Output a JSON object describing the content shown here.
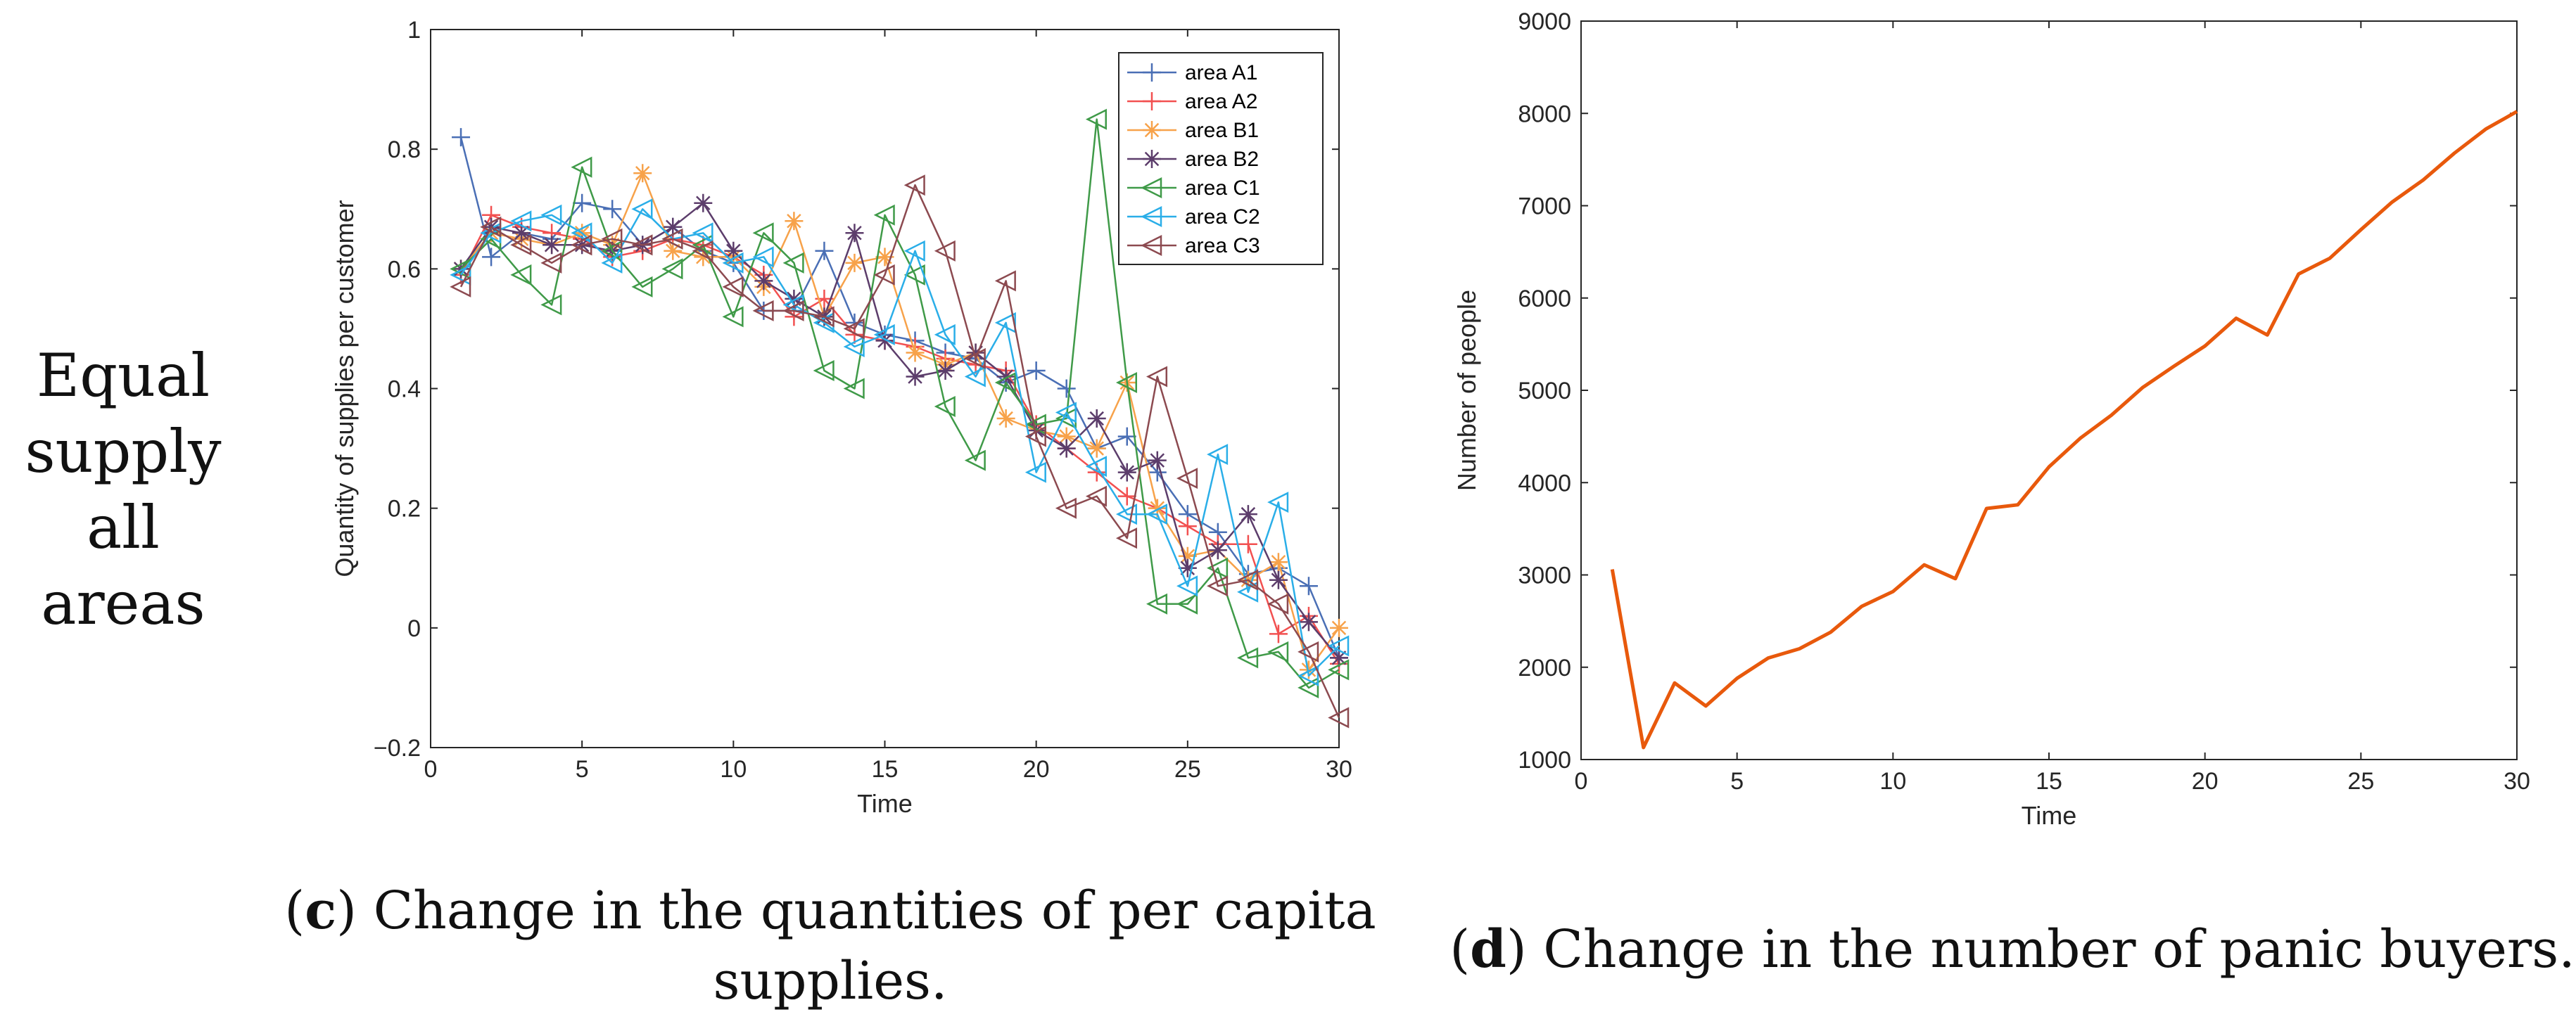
{
  "row_label": [
    "Equal",
    "supply",
    "all areas"
  ],
  "captions": {
    "c": {
      "letter": "c",
      "text_line1": ") Change in the quantities of per capita",
      "text_line2": "supplies."
    },
    "d": {
      "letter": "d",
      "text": ") Change in the number of panic buyers."
    }
  },
  "chart_data": [
    {
      "type": "line",
      "title": "",
      "xlabel": "Time",
      "ylabel": "Quantity of supplies per customer",
      "xlim": [
        0,
        30
      ],
      "ylim": [
        -0.2,
        1
      ],
      "xticks": [
        0,
        5,
        10,
        15,
        20,
        25,
        30
      ],
      "yticks": [
        -0.2,
        0,
        0.2,
        0.4,
        0.6,
        0.8,
        1
      ],
      "ytick_labels": [
        "−0.2",
        "0",
        "0.2",
        "0.4",
        "0.6",
        "0.8",
        "1"
      ],
      "grid": false,
      "legend_position": "top-right",
      "x": [
        1,
        2,
        3,
        4,
        5,
        6,
        7,
        8,
        9,
        10,
        11,
        12,
        13,
        14,
        15,
        16,
        17,
        18,
        19,
        20,
        21,
        22,
        23,
        24,
        25,
        26,
        27,
        28,
        29,
        30
      ],
      "series": [
        {
          "name": "area A1",
          "color": "#4a6fb5",
          "marker": "plus",
          "values": [
            0.82,
            0.62,
            0.66,
            0.65,
            0.71,
            0.7,
            0.64,
            0.67,
            0.63,
            0.61,
            0.53,
            0.53,
            0.63,
            0.51,
            0.49,
            0.48,
            0.46,
            0.45,
            0.41,
            0.43,
            0.4,
            0.3,
            0.32,
            0.26,
            0.19,
            0.16,
            0.09,
            0.1,
            0.07,
            -0.05
          ]
        },
        {
          "name": "area A2",
          "color": "#f25050",
          "marker": "plus",
          "values": [
            0.59,
            0.69,
            0.67,
            0.66,
            0.65,
            0.62,
            0.63,
            0.65,
            0.64,
            0.62,
            0.59,
            0.52,
            0.55,
            0.49,
            0.48,
            0.47,
            0.45,
            0.44,
            0.43,
            0.34,
            0.3,
            0.26,
            0.22,
            0.2,
            0.17,
            0.14,
            0.14,
            -0.01,
            0.02,
            -0.06
          ]
        },
        {
          "name": "area B1",
          "color": "#f7a24a",
          "marker": "asterisk",
          "values": [
            0.6,
            0.66,
            0.65,
            0.64,
            0.66,
            0.64,
            0.76,
            0.63,
            0.62,
            0.62,
            0.57,
            0.68,
            0.52,
            0.61,
            0.62,
            0.46,
            0.44,
            0.46,
            0.35,
            0.33,
            0.32,
            0.3,
            0.41,
            0.2,
            0.12,
            0.13,
            0.08,
            0.11,
            -0.07,
            0.0
          ]
        },
        {
          "name": "area B2",
          "color": "#5c3d6b",
          "marker": "asterisk",
          "values": [
            0.6,
            0.67,
            0.66,
            0.64,
            0.64,
            0.63,
            0.64,
            0.67,
            0.71,
            0.63,
            0.58,
            0.55,
            0.52,
            0.66,
            0.48,
            0.42,
            0.43,
            0.46,
            0.42,
            0.33,
            0.3,
            0.35,
            0.26,
            0.28,
            0.1,
            0.13,
            0.19,
            0.08,
            0.01,
            -0.05
          ]
        },
        {
          "name": "area C1",
          "color": "#3f9a48",
          "marker": "triangle-left",
          "values": [
            0.6,
            0.65,
            0.59,
            0.54,
            0.77,
            0.63,
            0.57,
            0.6,
            0.64,
            0.52,
            0.66,
            0.61,
            0.43,
            0.4,
            0.69,
            0.59,
            0.37,
            0.28,
            0.41,
            0.34,
            0.35,
            0.85,
            0.41,
            0.04,
            0.04,
            0.1,
            -0.05,
            -0.04,
            -0.1,
            -0.07
          ]
        },
        {
          "name": "area C2",
          "color": "#2aaee8",
          "marker": "triangle-left",
          "values": [
            0.59,
            0.66,
            0.68,
            0.69,
            0.66,
            0.61,
            0.7,
            0.65,
            0.66,
            0.61,
            0.62,
            0.54,
            0.51,
            0.47,
            0.49,
            0.63,
            0.49,
            0.42,
            0.51,
            0.26,
            0.36,
            0.27,
            0.19,
            0.19,
            0.07,
            0.29,
            0.06,
            0.21,
            -0.08,
            -0.03
          ]
        },
        {
          "name": "area C3",
          "color": "#8c4a50",
          "marker": "triangle-left",
          "values": [
            0.57,
            0.67,
            0.64,
            0.61,
            0.64,
            0.65,
            0.64,
            0.65,
            0.63,
            0.57,
            0.53,
            0.53,
            0.52,
            0.5,
            0.59,
            0.74,
            0.63,
            0.45,
            0.58,
            0.32,
            0.2,
            0.22,
            0.15,
            0.42,
            0.25,
            0.07,
            0.08,
            0.04,
            -0.04,
            -0.15
          ]
        }
      ]
    },
    {
      "type": "line",
      "title": "",
      "xlabel": "Time",
      "ylabel": "Number of people",
      "xlim": [
        0,
        30
      ],
      "ylim": [
        1000,
        9000
      ],
      "xticks": [
        0,
        5,
        10,
        15,
        20,
        25,
        30
      ],
      "yticks": [
        1000,
        2000,
        3000,
        4000,
        5000,
        6000,
        7000,
        8000,
        9000
      ],
      "grid": false,
      "x": [
        1,
        2,
        3,
        4,
        5,
        6,
        7,
        8,
        9,
        10,
        11,
        12,
        13,
        14,
        15,
        16,
        17,
        18,
        19,
        20,
        21,
        22,
        23,
        24,
        25,
        26,
        27,
        28,
        29,
        30
      ],
      "series": [
        {
          "color": "#e8590c",
          "values": [
            3060,
            1130,
            1830,
            1580,
            1880,
            2100,
            2200,
            2380,
            2660,
            2820,
            3110,
            2960,
            3720,
            3760,
            4170,
            4480,
            4730,
            5030,
            5260,
            5480,
            5780,
            5600,
            6260,
            6430,
            6740,
            7040,
            7280,
            7570,
            7830,
            8020
          ]
        }
      ]
    }
  ]
}
